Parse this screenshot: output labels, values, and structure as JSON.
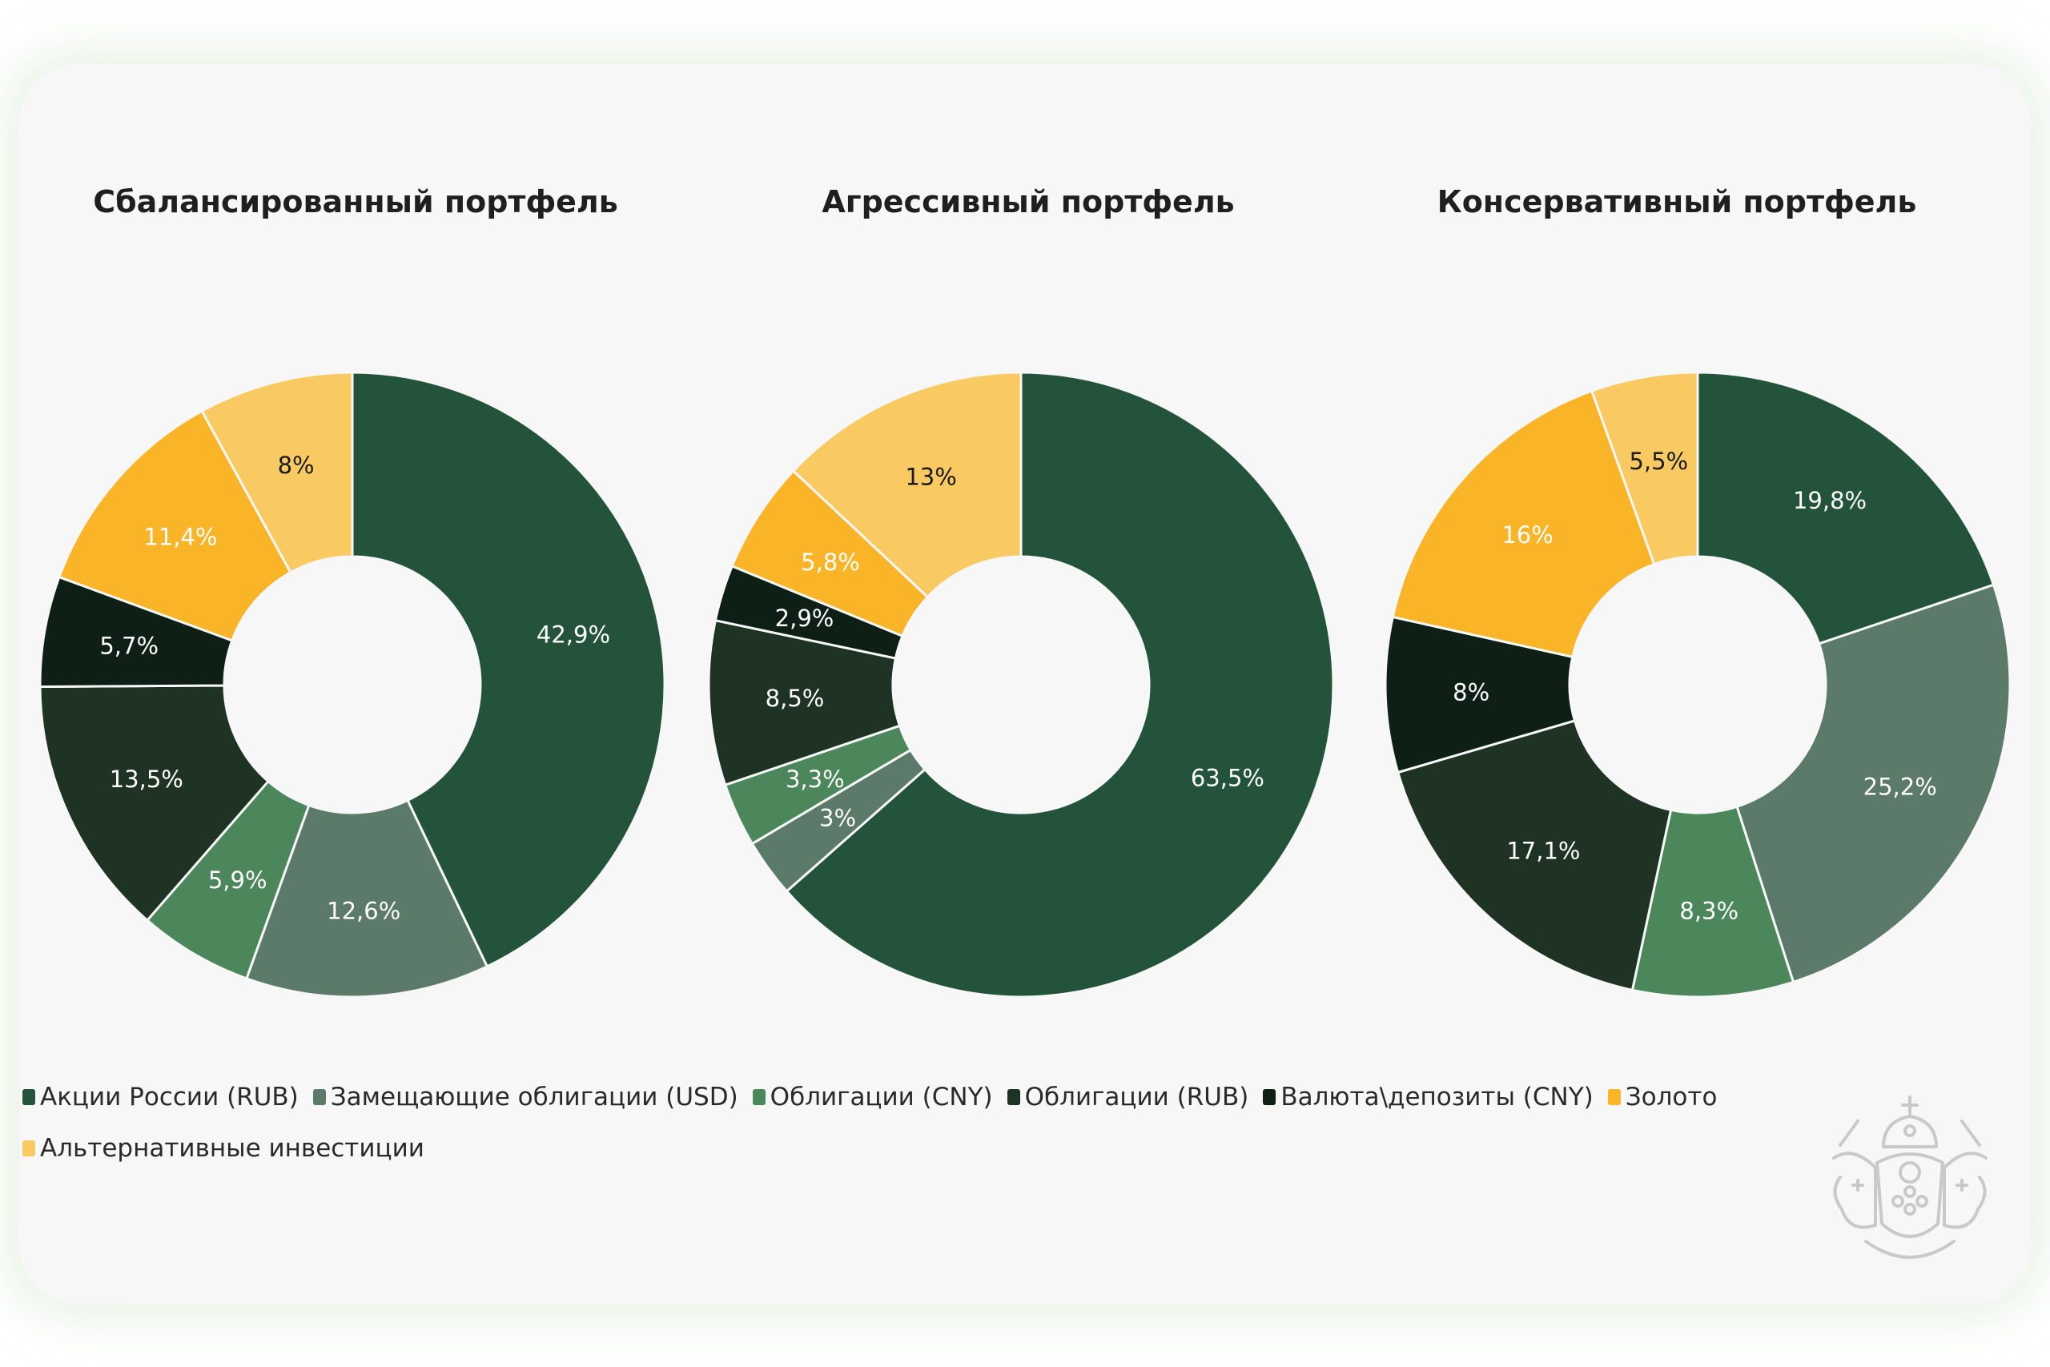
{
  "legend": [
    {
      "label": "Акции России (RUB)",
      "color": "#23533a"
    },
    {
      "label": "Замещающие облигации (USD)",
      "color": "#5b7a69"
    },
    {
      "label": "Облигации (CNY)",
      "color": "#4b875b"
    },
    {
      "label": "Облигации (RUB)",
      "color": "#1f3325"
    },
    {
      "label": "Валюта\\депозиты (CNY)",
      "color": "#0e2016"
    },
    {
      "label": "Золото",
      "color": "#f9b427"
    },
    {
      "label": "Альтернативные инвестиции",
      "color": "#f9c962"
    }
  ],
  "chart_data": [
    {
      "type": "pie",
      "title": "Сбалансированный портфель",
      "categories": [
        "Акции России (RUB)",
        "Замещающие облигации (USD)",
        "Облигации (CNY)",
        "Облигации (RUB)",
        "Валюта\\депозиты (CNY)",
        "Золото",
        "Альтернативные инвестиции"
      ],
      "values": [
        42.9,
        12.6,
        5.9,
        13.5,
        5.7,
        11.4,
        8
      ],
      "labels": [
        "42,9%",
        "12,6%",
        "5,9%",
        "13,5%",
        "5,7%",
        "11,4%",
        "8%"
      ],
      "colors": [
        "#23533a",
        "#5b7a69",
        "#4b875b",
        "#1f3325",
        "#0e2016",
        "#f9b427",
        "#f9c962"
      ]
    },
    {
      "type": "pie",
      "title": "Агрессивный портфель",
      "categories": [
        "Акции России (RUB)",
        "Замещающие облигации (USD)",
        "Облигации (CNY)",
        "Облигации (RUB)",
        "Валюта\\депозиты (CNY)",
        "Золото",
        "Альтернативные инвестиции"
      ],
      "values": [
        63.5,
        3,
        3.3,
        8.5,
        2.9,
        5.8,
        13
      ],
      "labels": [
        "63,5%",
        "3%",
        "3,3%",
        "8,5%",
        "2,9%",
        "5,8%",
        "13%"
      ],
      "colors": [
        "#23533a",
        "#5b7a69",
        "#4b875b",
        "#1f3325",
        "#0e2016",
        "#f9b427",
        "#f9c962"
      ]
    },
    {
      "type": "pie",
      "title": "Консервативный портфель",
      "categories": [
        "Акции России (RUB)",
        "Замещающие облигации (USD)",
        "Облигации (CNY)",
        "Облигации (RUB)",
        "Валюта\\депозиты (CNY)",
        "Золото",
        "Альтернативные инвестиции"
      ],
      "values": [
        19.8,
        25.2,
        8.3,
        17.1,
        8,
        16,
        5.5
      ],
      "labels": [
        "19,8%",
        "25,2%",
        "8,3%",
        "17,1%",
        "8%",
        "16%",
        "5,5%"
      ],
      "colors": [
        "#23533a",
        "#5b7a69",
        "#4b875b",
        "#1f3325",
        "#0e2016",
        "#f9b427",
        "#f9c962"
      ]
    }
  ]
}
